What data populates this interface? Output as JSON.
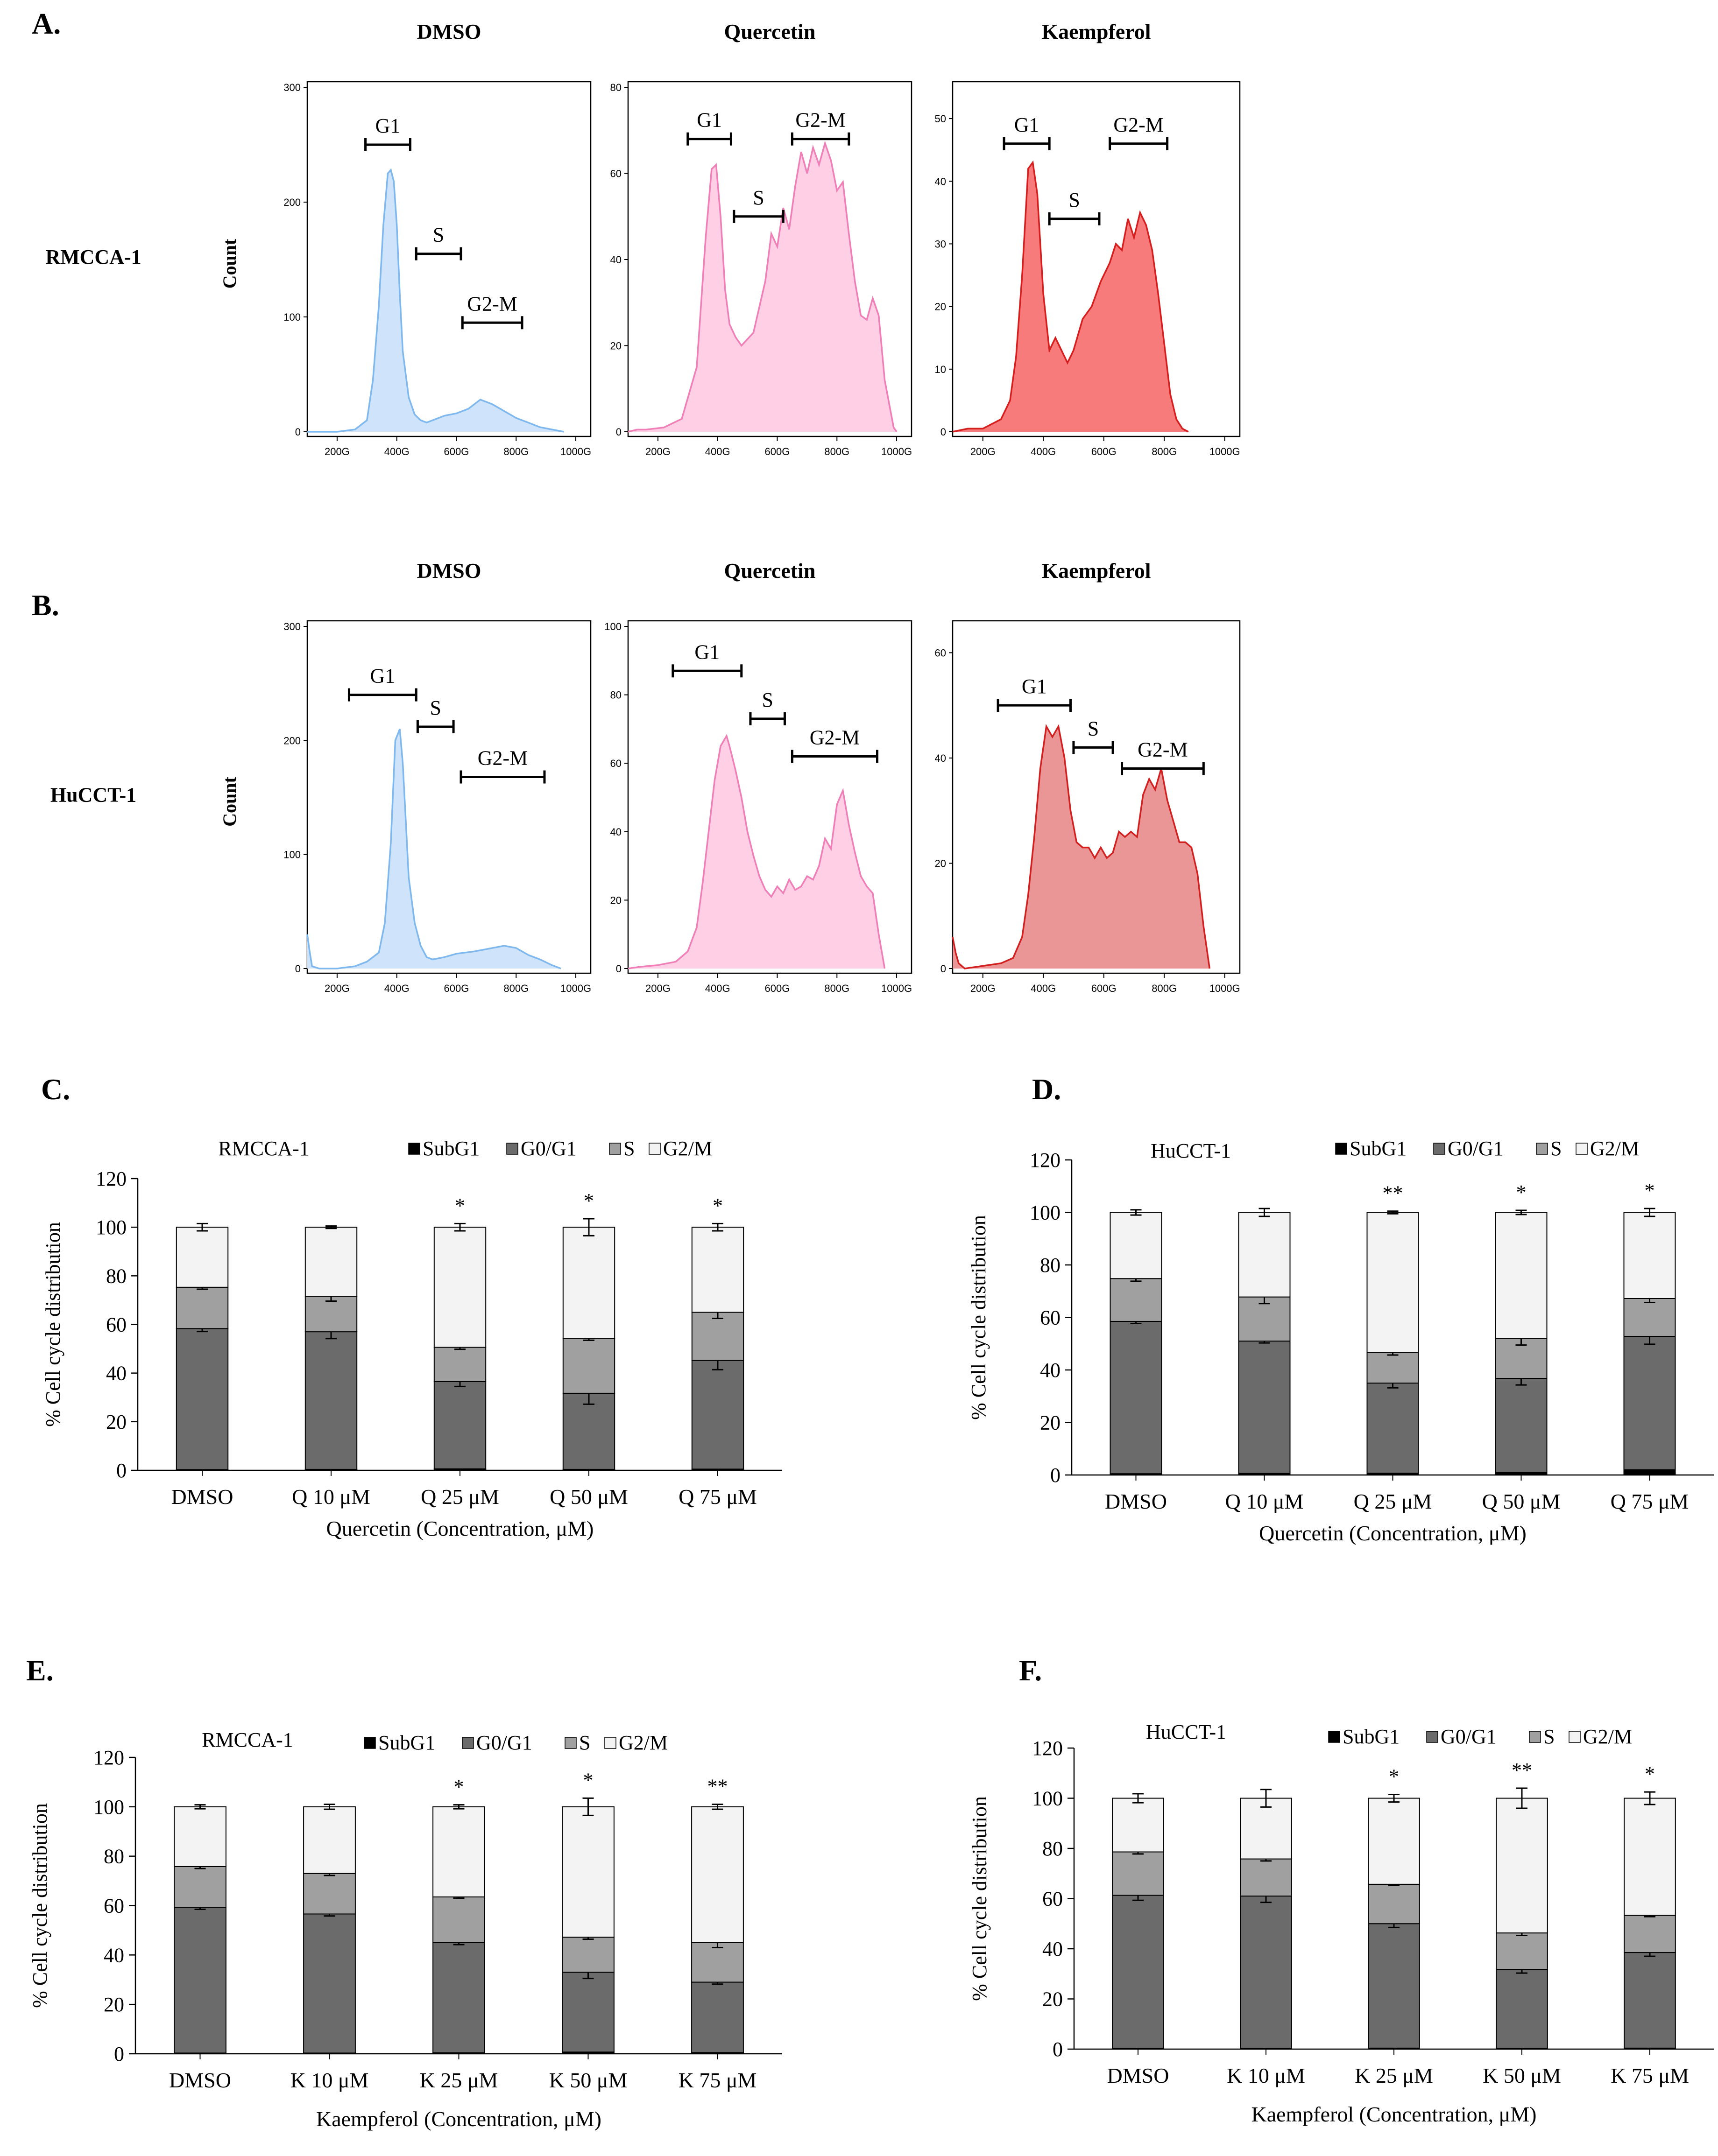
{
  "figure_title": "",
  "colors": {
    "dmso_fill": "#cfe4fb",
    "dmso_line": "#7fb8ee",
    "quercetin_fill": "#ffcfe6",
    "quercetin_line": "#ef7fb6",
    "kaempferol_A_fill": "#f77b7b",
    "kaempferol_A_line": "#d61e1e",
    "kaempferol_B_fill": "#ea9696",
    "kaempferol_B_line": "#d21f1f",
    "subg1": "#000000",
    "g0g1": "#6b6b6b",
    "s": "#a0a0a0",
    "g2m": "#f3f3f3"
  },
  "chart_data": [
    {
      "id": "A-DMSO",
      "type": "area",
      "panel_label": "A.",
      "column_title": "DMSO",
      "row_label": "RMCCA-1",
      "ylabel": "Count",
      "xlim": [
        100,
        1050
      ],
      "ylim": [
        0,
        300
      ],
      "yticks": [
        0,
        100,
        200,
        300
      ],
      "xticks": [
        200,
        400,
        600,
        800,
        1000
      ],
      "xtick_labels": [
        "200G",
        "400G",
        "600G",
        "800G",
        "1000G"
      ],
      "style": "dmso",
      "x": [
        100,
        200,
        260,
        300,
        320,
        340,
        355,
        370,
        380,
        390,
        400,
        410,
        420,
        440,
        460,
        480,
        500,
        520,
        560,
        600,
        640,
        680,
        720,
        760,
        800,
        840,
        880,
        920,
        960
      ],
      "y": [
        0,
        0,
        2,
        10,
        45,
        110,
        180,
        225,
        228,
        218,
        180,
        120,
        70,
        30,
        15,
        10,
        8,
        10,
        14,
        16,
        20,
        28,
        24,
        18,
        12,
        8,
        4,
        2,
        0
      ],
      "gates": [
        {
          "label": "G1",
          "x1": 295,
          "x2": 445,
          "y": 250
        },
        {
          "label": "S",
          "x1": 465,
          "x2": 615,
          "y": 155
        },
        {
          "label": "G2-M",
          "x1": 620,
          "x2": 820,
          "y": 95
        }
      ]
    },
    {
      "id": "A-Quercetin",
      "type": "area",
      "column_title": "Quercetin",
      "xlim": [
        100,
        1050
      ],
      "ylim": [
        0,
        80
      ],
      "yticks": [
        0,
        20,
        40,
        60,
        80
      ],
      "xticks": [
        200,
        400,
        600,
        800,
        1000
      ],
      "xtick_labels": [
        "200G",
        "400G",
        "600G",
        "800G",
        "1000G"
      ],
      "style": "quercetin",
      "x": [
        100,
        130,
        160,
        220,
        280,
        330,
        360,
        380,
        395,
        410,
        425,
        440,
        460,
        480,
        520,
        560,
        580,
        600,
        620,
        640,
        660,
        680,
        700,
        720,
        740,
        760,
        780,
        800,
        820,
        840,
        860,
        880,
        900,
        920,
        940,
        960,
        990,
        1000
      ],
      "y": [
        0,
        0.5,
        0.5,
        1,
        3,
        15,
        45,
        61,
        62,
        50,
        33,
        25,
        22,
        20,
        23,
        35,
        46,
        43,
        52,
        47,
        57,
        65,
        60,
        66,
        62,
        67,
        63,
        56,
        58,
        46,
        35,
        27,
        26,
        31,
        27,
        12,
        1,
        0
      ],
      "gates": [
        {
          "label": "G1",
          "x1": 300,
          "x2": 445,
          "y": 68
        },
        {
          "label": "S",
          "x1": 455,
          "x2": 620,
          "y": 50
        },
        {
          "label": "G2-M",
          "x1": 650,
          "x2": 840,
          "y": 68
        }
      ]
    },
    {
      "id": "A-Kaempferol",
      "type": "area",
      "column_title": "Kaempferol",
      "xlim": [
        100,
        1050
      ],
      "ylim": [
        0,
        55
      ],
      "yticks": [
        0,
        10,
        20,
        30,
        40,
        50
      ],
      "xticks": [
        200,
        400,
        600,
        800,
        1000
      ],
      "xtick_labels": [
        "200G",
        "400G",
        "600G",
        "800G",
        "1000G"
      ],
      "style": "kaempferol_A",
      "x": [
        100,
        150,
        200,
        260,
        290,
        310,
        330,
        350,
        365,
        380,
        400,
        420,
        440,
        460,
        480,
        500,
        530,
        560,
        590,
        620,
        640,
        660,
        680,
        700,
        720,
        740,
        760,
        780,
        800,
        820,
        840,
        860,
        880
      ],
      "y": [
        0,
        0.5,
        0.5,
        2,
        5,
        12,
        25,
        42,
        43,
        38,
        22,
        13,
        15,
        13,
        11,
        13,
        18,
        20,
        24,
        27,
        30,
        29,
        34,
        31,
        35,
        33,
        29,
        22,
        14,
        6,
        2,
        0.5,
        0
      ],
      "gates": [
        {
          "label": "G1",
          "x1": 270,
          "x2": 420,
          "y": 46
        },
        {
          "label": "S",
          "x1": 420,
          "x2": 585,
          "y": 34
        },
        {
          "label": "G2-M",
          "x1": 620,
          "x2": 810,
          "y": 46
        }
      ]
    },
    {
      "id": "B-DMSO",
      "type": "area",
      "panel_label": "B.",
      "column_title": "DMSO",
      "row_label": "HuCCT-1",
      "ylabel": "Count",
      "xlim": [
        100,
        1050
      ],
      "ylim": [
        0,
        300
      ],
      "yticks": [
        0,
        100,
        200,
        300
      ],
      "xticks": [
        200,
        400,
        600,
        800,
        1000
      ],
      "xtick_labels": [
        "200G",
        "400G",
        "600G",
        "800G",
        "1000G"
      ],
      "style": "dmso",
      "x": [
        100,
        108,
        116,
        140,
        200,
        260,
        300,
        340,
        360,
        380,
        395,
        410,
        420,
        430,
        440,
        460,
        480,
        500,
        520,
        560,
        600,
        660,
        700,
        760,
        800,
        840,
        880,
        920,
        950
      ],
      "y": [
        30,
        15,
        2,
        0,
        0,
        2,
        6,
        14,
        40,
        110,
        200,
        210,
        180,
        130,
        80,
        40,
        20,
        10,
        8,
        10,
        13,
        15,
        17,
        20,
        18,
        12,
        8,
        3,
        0
      ],
      "gates": [
        {
          "label": "G1",
          "x1": 240,
          "x2": 465,
          "y": 240
        },
        {
          "label": "S",
          "x1": 470,
          "x2": 590,
          "y": 212
        },
        {
          "label": "G2-M",
          "x1": 615,
          "x2": 895,
          "y": 168
        }
      ]
    },
    {
      "id": "B-Quercetin",
      "type": "area",
      "column_title": "Quercetin",
      "xlim": [
        100,
        1050
      ],
      "ylim": [
        0,
        100
      ],
      "yticks": [
        0,
        20,
        40,
        60,
        80,
        100
      ],
      "xticks": [
        200,
        400,
        600,
        800,
        1000
      ],
      "xtick_labels": [
        "200G",
        "400G",
        "600G",
        "800G",
        "1000G"
      ],
      "style": "quercetin",
      "x": [
        100,
        140,
        200,
        260,
        300,
        330,
        350,
        370,
        390,
        410,
        430,
        440,
        460,
        480,
        500,
        520,
        540,
        560,
        580,
        600,
        620,
        640,
        660,
        680,
        700,
        720,
        740,
        760,
        780,
        800,
        820,
        840,
        860,
        880,
        900,
        920,
        940,
        960
      ],
      "y": [
        0,
        0.5,
        1,
        2,
        5,
        12,
        25,
        40,
        55,
        65,
        68,
        65,
        58,
        50,
        40,
        33,
        27,
        23,
        21,
        24,
        22,
        26,
        23,
        24,
        27,
        26,
        30,
        38,
        35,
        48,
        52,
        42,
        34,
        27,
        24,
        22,
        10,
        0
      ],
      "gates": [
        {
          "label": "G1",
          "x1": 250,
          "x2": 480,
          "y": 87
        },
        {
          "label": "S",
          "x1": 510,
          "x2": 625,
          "y": 73
        },
        {
          "label": "G2-M",
          "x1": 650,
          "x2": 935,
          "y": 62
        }
      ]
    },
    {
      "id": "B-Kaempferol",
      "type": "area",
      "column_title": "Kaempferol",
      "xlim": [
        100,
        1050
      ],
      "ylim": [
        0,
        65
      ],
      "yticks": [
        0,
        20,
        40,
        60
      ],
      "xticks": [
        200,
        400,
        600,
        800,
        1000
      ],
      "xtick_labels": [
        "200G",
        "400G",
        "600G",
        "800G",
        "1000G"
      ],
      "style": "kaempferol_B",
      "x": [
        100,
        110,
        120,
        140,
        200,
        260,
        300,
        330,
        350,
        370,
        390,
        410,
        430,
        450,
        470,
        490,
        510,
        530,
        550,
        570,
        590,
        610,
        630,
        650,
        670,
        690,
        710,
        730,
        750,
        770,
        790,
        810,
        830,
        850,
        870,
        890,
        910,
        930,
        950
      ],
      "y": [
        6,
        3,
        1,
        0,
        0.5,
        1,
        2,
        6,
        14,
        25,
        38,
        46,
        44,
        46,
        40,
        30,
        24,
        23,
        23,
        21,
        23,
        21,
        22,
        26,
        25,
        26,
        25,
        33,
        36,
        34,
        38,
        32,
        28,
        24,
        24,
        23,
        18,
        8,
        0
      ],
      "gates": [
        {
          "label": "G1",
          "x1": 250,
          "x2": 490,
          "y": 50
        },
        {
          "label": "S",
          "x1": 500,
          "x2": 630,
          "y": 42
        },
        {
          "label": "G2-M",
          "x1": 660,
          "x2": 930,
          "y": 38
        }
      ]
    },
    {
      "id": "C",
      "type": "bar",
      "stacked": true,
      "panel_label": "C.",
      "cell_line": "RMCCA-1",
      "categories": [
        "DMSO",
        "Q 10 μM",
        "Q 25 μM",
        "Q 50 μM",
        "Q 75 μM"
      ],
      "xlabel": "Quercetin (Concentration, μM)",
      "ylabel": "% Cell cycle distribution",
      "ylim": [
        0,
        120
      ],
      "yticks": [
        0,
        20,
        40,
        60,
        80,
        100,
        120
      ],
      "legend": [
        "SubG1",
        "G0/G1",
        "S",
        "G2/M"
      ],
      "series": [
        {
          "name": "SubG1",
          "values": [
            0.3,
            0.4,
            0.6,
            0.4,
            0.5
          ]
        },
        {
          "name": "G0/G1",
          "values": [
            58,
            56.6,
            35.9,
            31.3,
            44.7
          ]
        },
        {
          "name": "S",
          "values": [
            17,
            14.6,
            14.1,
            22.6,
            19.8
          ]
        },
        {
          "name": "G2/M",
          "values": [
            24.7,
            28.4,
            49.4,
            45.7,
            35
          ]
        }
      ],
      "errors": {
        "G0/G1": [
          1.2,
          2.8,
          2,
          4.5,
          3.8
        ],
        "S": [
          0.8,
          2,
          0.8,
          0.8,
          2.5
        ],
        "G2/M": [
          1.5,
          0.5,
          1.5,
          3.5,
          1.5
        ]
      },
      "significance": [
        "",
        "",
        "*",
        "*",
        "*"
      ]
    },
    {
      "id": "D",
      "type": "bar",
      "stacked": true,
      "panel_label": "D.",
      "cell_line": "HuCCT-1",
      "categories": [
        "DMSO",
        "Q 10 μM",
        "Q 25 μM",
        "Q 50 μM",
        "Q 75 μM"
      ],
      "xlabel": "Quercetin (Concentration, μM)",
      "ylabel": "% Cell cycle distribution",
      "ylim": [
        0,
        120
      ],
      "yticks": [
        0,
        20,
        40,
        60,
        80,
        100,
        120
      ],
      "legend": [
        "SubG1",
        "G0/G1",
        "S",
        "G2/M"
      ],
      "series": [
        {
          "name": "SubG1",
          "values": [
            0.5,
            0.6,
            0.7,
            1,
            2
          ]
        },
        {
          "name": "G0/G1",
          "values": [
            58,
            50.4,
            34.3,
            35.8,
            50.8
          ]
        },
        {
          "name": "S",
          "values": [
            16.3,
            16.8,
            11.7,
            15.2,
            14.4
          ]
        },
        {
          "name": "G2/M",
          "values": [
            25.2,
            32.2,
            53.3,
            48,
            32.8
          ]
        }
      ],
      "errors": {
        "G0/G1": [
          0.8,
          0.7,
          1.8,
          2.5,
          3
        ],
        "S": [
          1,
          2.5,
          1,
          2.5,
          1.5
        ],
        "G2/M": [
          1,
          1.5,
          0.5,
          0.8,
          1.5
        ]
      },
      "significance": [
        "",
        "",
        "**",
        "*",
        "*"
      ]
    },
    {
      "id": "E",
      "type": "bar",
      "stacked": true,
      "panel_label": "E.",
      "cell_line": "RMCCA-1",
      "categories": [
        "DMSO",
        "K 10 μM",
        "K 25 μM",
        "K 50 μM",
        "K 75 μM"
      ],
      "xlabel": "Kaempferol (Concentration, μM)",
      "ylabel": "% Cell cycle distribution",
      "ylim": [
        0,
        120
      ],
      "yticks": [
        0,
        20,
        40,
        60,
        80,
        100,
        120
      ],
      "legend": [
        "SubG1",
        "G0/G1",
        "S",
        "G2/M"
      ],
      "series": [
        {
          "name": "SubG1",
          "values": [
            0.3,
            0.3,
            0.4,
            0.7,
            0.5
          ]
        },
        {
          "name": "G0/G1",
          "values": [
            59,
            56.3,
            44.6,
            32.3,
            28.5
          ]
        },
        {
          "name": "S",
          "values": [
            16.5,
            16.4,
            18.5,
            14.2,
            16
          ]
        },
        {
          "name": "G2/M",
          "values": [
            24.2,
            27,
            36.5,
            52.8,
            55
          ]
        }
      ],
      "errors": {
        "G0/G1": [
          0.8,
          0.8,
          0.8,
          2.5,
          0.8
        ],
        "S": [
          0.8,
          0.8,
          0.5,
          0.8,
          2
        ],
        "G2/M": [
          0.8,
          1,
          0.8,
          3.5,
          1
        ]
      },
      "significance": [
        "",
        "",
        "*",
        "*",
        "**"
      ]
    },
    {
      "id": "F",
      "type": "bar",
      "stacked": true,
      "panel_label": "F.",
      "cell_line": "HuCCT-1",
      "categories": [
        "DMSO",
        "K 10 μM",
        "K 25 μM",
        "K 50 μM",
        "K 75 μM"
      ],
      "xlabel": "Kaempferol (Concentration, μM)",
      "ylabel": "% Cell cycle distribution",
      "ylim": [
        0,
        120
      ],
      "yticks": [
        0,
        20,
        40,
        60,
        80,
        100,
        120
      ],
      "legend": [
        "SubG1",
        "G0/G1",
        "S",
        "G2/M"
      ],
      "series": [
        {
          "name": "SubG1",
          "values": [
            0.3,
            0.3,
            0.4,
            0.3,
            0.4
          ]
        },
        {
          "name": "G0/G1",
          "values": [
            61,
            60.7,
            49.6,
            31.5,
            38.1
          ]
        },
        {
          "name": "S",
          "values": [
            17.3,
            14.8,
            15.7,
            14.5,
            14.8
          ]
        },
        {
          "name": "G2/M",
          "values": [
            21.4,
            24.2,
            34.3,
            53.7,
            46.7
          ]
        }
      ],
      "errors": {
        "G0/G1": [
          2,
          2.5,
          1.5,
          1.5,
          1.5
        ],
        "S": [
          0.8,
          0.8,
          0.5,
          1,
          0.5
        ],
        "G2/M": [
          1.8,
          3.5,
          1.5,
          4,
          2.5
        ]
      },
      "significance": [
        "",
        "",
        "*",
        "**",
        "*"
      ]
    }
  ]
}
